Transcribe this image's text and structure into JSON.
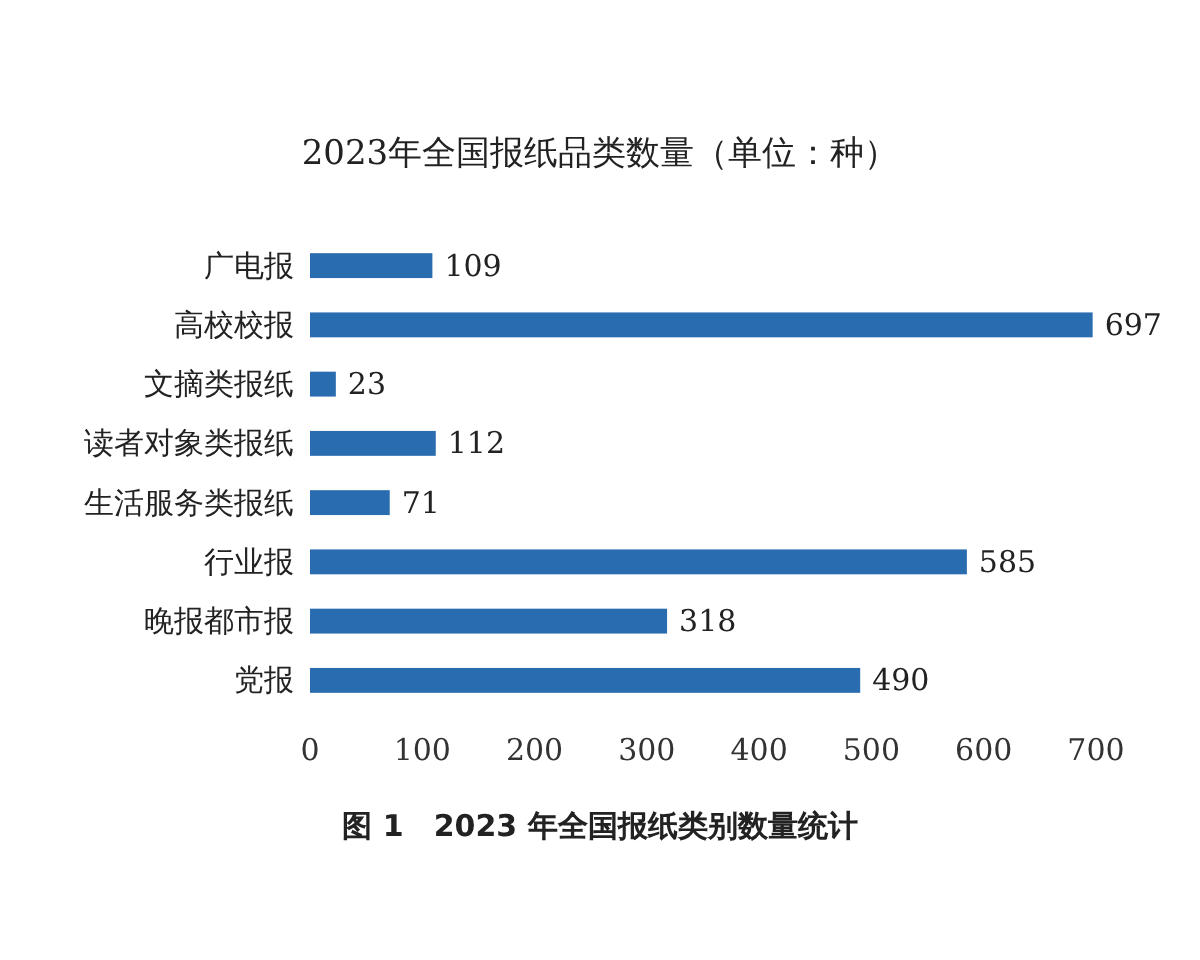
{
  "chart_data": {
    "type": "bar",
    "orientation": "horizontal",
    "title": "2023年全国报纸品类数量（单位：种）",
    "categories": [
      "广电报",
      "高校校报",
      "文摘类报纸",
      "读者对象类报纸",
      "生活服务类报纸",
      "行业报",
      "晚报都市报",
      "党报"
    ],
    "values": [
      109,
      697,
      23,
      112,
      71,
      585,
      318,
      490
    ],
    "color": "#2a6cb0",
    "xlim": [
      0,
      700
    ],
    "xticks": [
      0,
      100,
      200,
      300,
      400,
      500,
      600,
      700
    ],
    "data_labels": true,
    "annotations": [
      "图 1　2023 年全国报纸类别数量统计"
    ]
  }
}
